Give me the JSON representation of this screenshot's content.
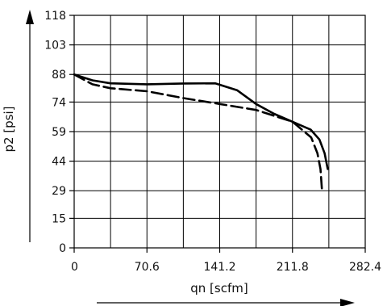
{
  "chart_data": {
    "type": "line",
    "title": "",
    "xlabel": "qn [scfm]",
    "ylabel": "p2 [psi]",
    "xlim": [
      0,
      282.4
    ],
    "ylim": [
      0,
      118
    ],
    "x_ticks": [
      "0",
      "70.6",
      "141.2",
      "211.8",
      "282.4"
    ],
    "y_ticks": [
      "0",
      "15",
      "29",
      "44",
      "59",
      "74",
      "88",
      "103",
      "118"
    ],
    "grid": true,
    "legend": "none",
    "colors": {
      "series": "#000000",
      "grid": "#000000",
      "background": "#ffffff"
    },
    "series": [
      {
        "style": "solid",
        "points": [
          {
            "x": 0,
            "y": 88
          },
          {
            "x": 17.7,
            "y": 85
          },
          {
            "x": 35.3,
            "y": 83.5
          },
          {
            "x": 70.6,
            "y": 83
          },
          {
            "x": 105.9,
            "y": 83.4
          },
          {
            "x": 137,
            "y": 83.5
          },
          {
            "x": 158,
            "y": 80
          },
          {
            "x": 176.5,
            "y": 73
          },
          {
            "x": 194,
            "y": 68
          },
          {
            "x": 211.8,
            "y": 64
          },
          {
            "x": 229.5,
            "y": 60
          },
          {
            "x": 238,
            "y": 55
          },
          {
            "x": 243,
            "y": 48
          },
          {
            "x": 246,
            "y": 40
          }
        ]
      },
      {
        "style": "dashed",
        "points": [
          {
            "x": 0,
            "y": 88
          },
          {
            "x": 17.7,
            "y": 83
          },
          {
            "x": 35.3,
            "y": 81
          },
          {
            "x": 70.6,
            "y": 79.5
          },
          {
            "x": 105.9,
            "y": 76
          },
          {
            "x": 141.2,
            "y": 73
          },
          {
            "x": 176.5,
            "y": 70
          },
          {
            "x": 211.8,
            "y": 64
          },
          {
            "x": 230,
            "y": 56
          },
          {
            "x": 236,
            "y": 48
          },
          {
            "x": 239,
            "y": 40
          },
          {
            "x": 240.5,
            "y": 29
          }
        ]
      }
    ]
  }
}
